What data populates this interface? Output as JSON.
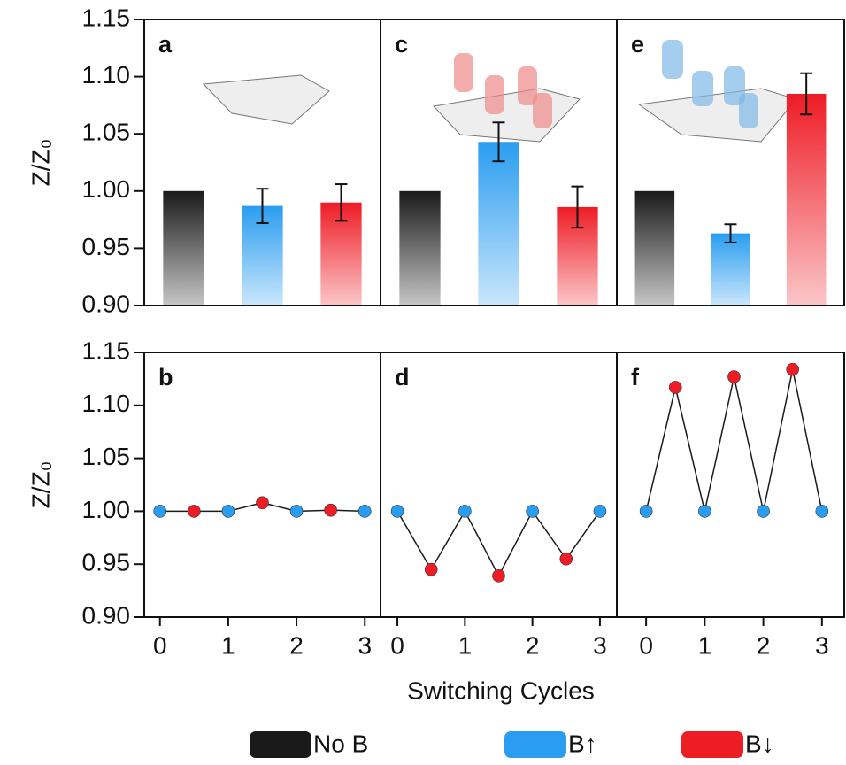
{
  "figure": {
    "x_label": "Switching Cycles",
    "legend": [
      {
        "name": "No B",
        "color": "#1a1a1a"
      },
      {
        "name": "B↑",
        "color": "#2a9df0"
      },
      {
        "name": "B↓",
        "color": "#ee1c25"
      }
    ]
  },
  "chart_data": [
    {
      "type": "bar",
      "label": "a",
      "y_label": "Z/Z₀",
      "categories": [
        null,
        null,
        null
      ],
      "values": [
        1.0,
        0.987,
        0.99
      ],
      "errors": [
        null,
        0.015,
        0.016
      ],
      "colors": [
        "#1a1a1a",
        "#2a9df0",
        "#ee1c25"
      ],
      "ylim": [
        0.9,
        1.15
      ],
      "yticks": [
        {
          "value": 0.9,
          "label": "0.90"
        },
        0.95,
        {
          "value": 1.0,
          "label": "1.00"
        },
        1.05,
        {
          "value": 1.1,
          "label": "1.10"
        },
        1.15
      ]
    },
    {
      "type": "line",
      "label": "b",
      "y_label": "Z/Z₀",
      "x": [
        0,
        0.5,
        1,
        1.5,
        2,
        2.5,
        3
      ],
      "values": [
        1.0,
        1.0,
        1.0,
        1.008,
        1.0,
        1.001,
        1.0
      ],
      "marker_colors": [
        "#2a9df0",
        "#ee1c25",
        "#2a9df0",
        "#ee1c25",
        "#2a9df0",
        "#ee1c25",
        "#2a9df0"
      ],
      "line_color": "#1a1a1a",
      "xlim": [
        -0.23,
        3.23
      ],
      "xticks": [
        0,
        1,
        2,
        3
      ],
      "ylim": [
        0.9,
        1.15
      ],
      "yticks": [
        {
          "value": 0.9,
          "label": "0.90"
        },
        0.95,
        {
          "value": 1.0,
          "label": "1.00"
        },
        1.05,
        {
          "value": 1.1,
          "label": "1.10"
        },
        1.15
      ]
    },
    {
      "type": "bar",
      "label": "c",
      "categories": [
        null,
        null,
        null
      ],
      "values": [
        1.0,
        1.043,
        0.986
      ],
      "errors": [
        null,
        0.017,
        0.018
      ],
      "colors": [
        "#1a1a1a",
        "#2a9df0",
        "#ee1c25"
      ],
      "ylim": [
        0.9,
        1.15
      ]
    },
    {
      "type": "line",
      "label": "d",
      "x": [
        0,
        0.5,
        1,
        1.5,
        2,
        2.5,
        3
      ],
      "values": [
        1.0,
        0.945,
        1.0,
        0.939,
        1.0,
        0.955,
        1.0
      ],
      "marker_colors": [
        "#2a9df0",
        "#ee1c25",
        "#2a9df0",
        "#ee1c25",
        "#2a9df0",
        "#ee1c25",
        "#2a9df0"
      ],
      "line_color": "#1a1a1a",
      "xlim": [
        -0.25,
        3.25
      ],
      "xticks": [
        0,
        1,
        2,
        3
      ],
      "ylim": [
        0.9,
        1.15
      ]
    },
    {
      "type": "bar",
      "label": "e",
      "categories": [
        null,
        null,
        null
      ],
      "values": [
        1.0,
        0.963,
        1.085
      ],
      "errors": [
        null,
        0.008,
        0.018
      ],
      "colors": [
        "#1a1a1a",
        "#2a9df0",
        "#ee1c25"
      ],
      "ylim": [
        0.9,
        1.15
      ]
    },
    {
      "type": "line",
      "label": "f",
      "x": [
        0,
        0.5,
        1,
        1.5,
        2,
        2.5,
        3
      ],
      "values": [
        1.0,
        1.117,
        1.0,
        1.127,
        1.0,
        1.134,
        1.0
      ],
      "marker_colors": [
        "#2a9df0",
        "#ee1c25",
        "#2a9df0",
        "#ee1c25",
        "#2a9df0",
        "#ee1c25",
        "#2a9df0"
      ],
      "line_color": "#1a1a1a",
      "xlim": [
        -0.5,
        3.38
      ],
      "xticks": [
        0,
        1,
        2,
        3
      ],
      "ylim": [
        0.9,
        1.15
      ]
    }
  ]
}
